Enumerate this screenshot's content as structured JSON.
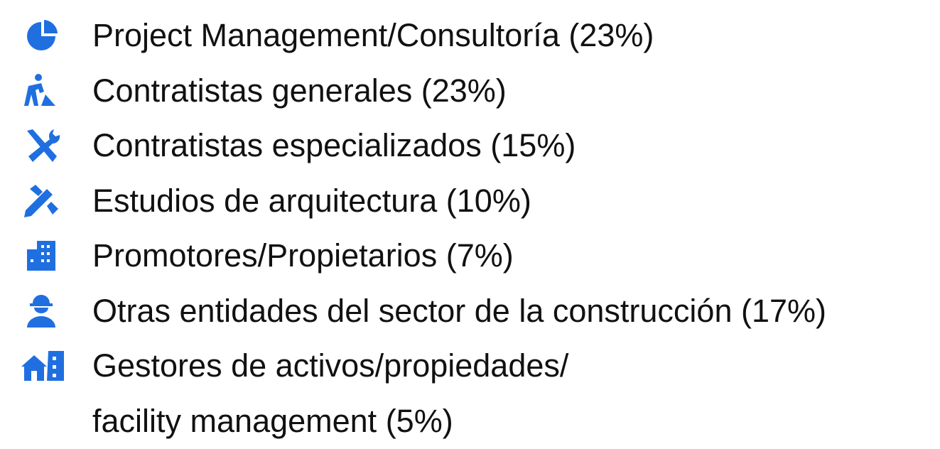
{
  "items": [
    {
      "lines": [
        "Project Management/Consultoría (23%)"
      ]
    },
    {
      "lines": [
        "Contratistas generales (23%)"
      ]
    },
    {
      "lines": [
        "Contratistas especializados (15%)"
      ]
    },
    {
      "lines": [
        "Estudios de arquitectura (10%)"
      ]
    },
    {
      "lines": [
        "Promotores/Propietarios (7%)"
      ]
    },
    {
      "lines": [
        "Otras entidades del sector de la construcción (17%)"
      ]
    },
    {
      "lines": [
        "Gestores de activos/propiedades/",
        "facility management (5%)"
      ]
    }
  ]
}
